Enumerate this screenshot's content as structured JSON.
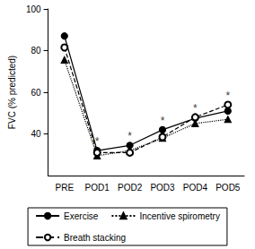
{
  "chart_data": {
    "type": "line",
    "y_label": "FVC (% predicted)",
    "categories": [
      "PRE",
      "POD1",
      "POD2",
      "POD3",
      "POD4",
      "POD5"
    ],
    "series": [
      {
        "name": "Exercise",
        "color": "#000000",
        "marker": "circle",
        "line_style": "solid",
        "values": [
          87,
          32,
          34.5,
          42,
          47.5,
          51
        ]
      },
      {
        "name": "Incentive spirometry",
        "color": "#000000",
        "marker": "triangle",
        "line_style": "dotted",
        "values": [
          75.5,
          29.5,
          32,
          38,
          45,
          47
        ]
      },
      {
        "name": "Breath stacking",
        "color": "#000000",
        "marker": "circle_open",
        "line_style": "dashed",
        "values": [
          81.5,
          31,
          31,
          38.5,
          48,
          54
        ]
      }
    ],
    "annotations": [
      {
        "x": "POD1",
        "text": "*"
      },
      {
        "x": "POD2",
        "text": "*"
      },
      {
        "x": "POD3",
        "text": "*"
      },
      {
        "x": "POD4",
        "text": "*"
      },
      {
        "x": "POD5",
        "text": "*"
      }
    ],
    "ylim": [
      20,
      100
    ],
    "yticks": [
      40,
      60,
      80,
      100
    ],
    "grid": false,
    "legend": "bottom"
  }
}
